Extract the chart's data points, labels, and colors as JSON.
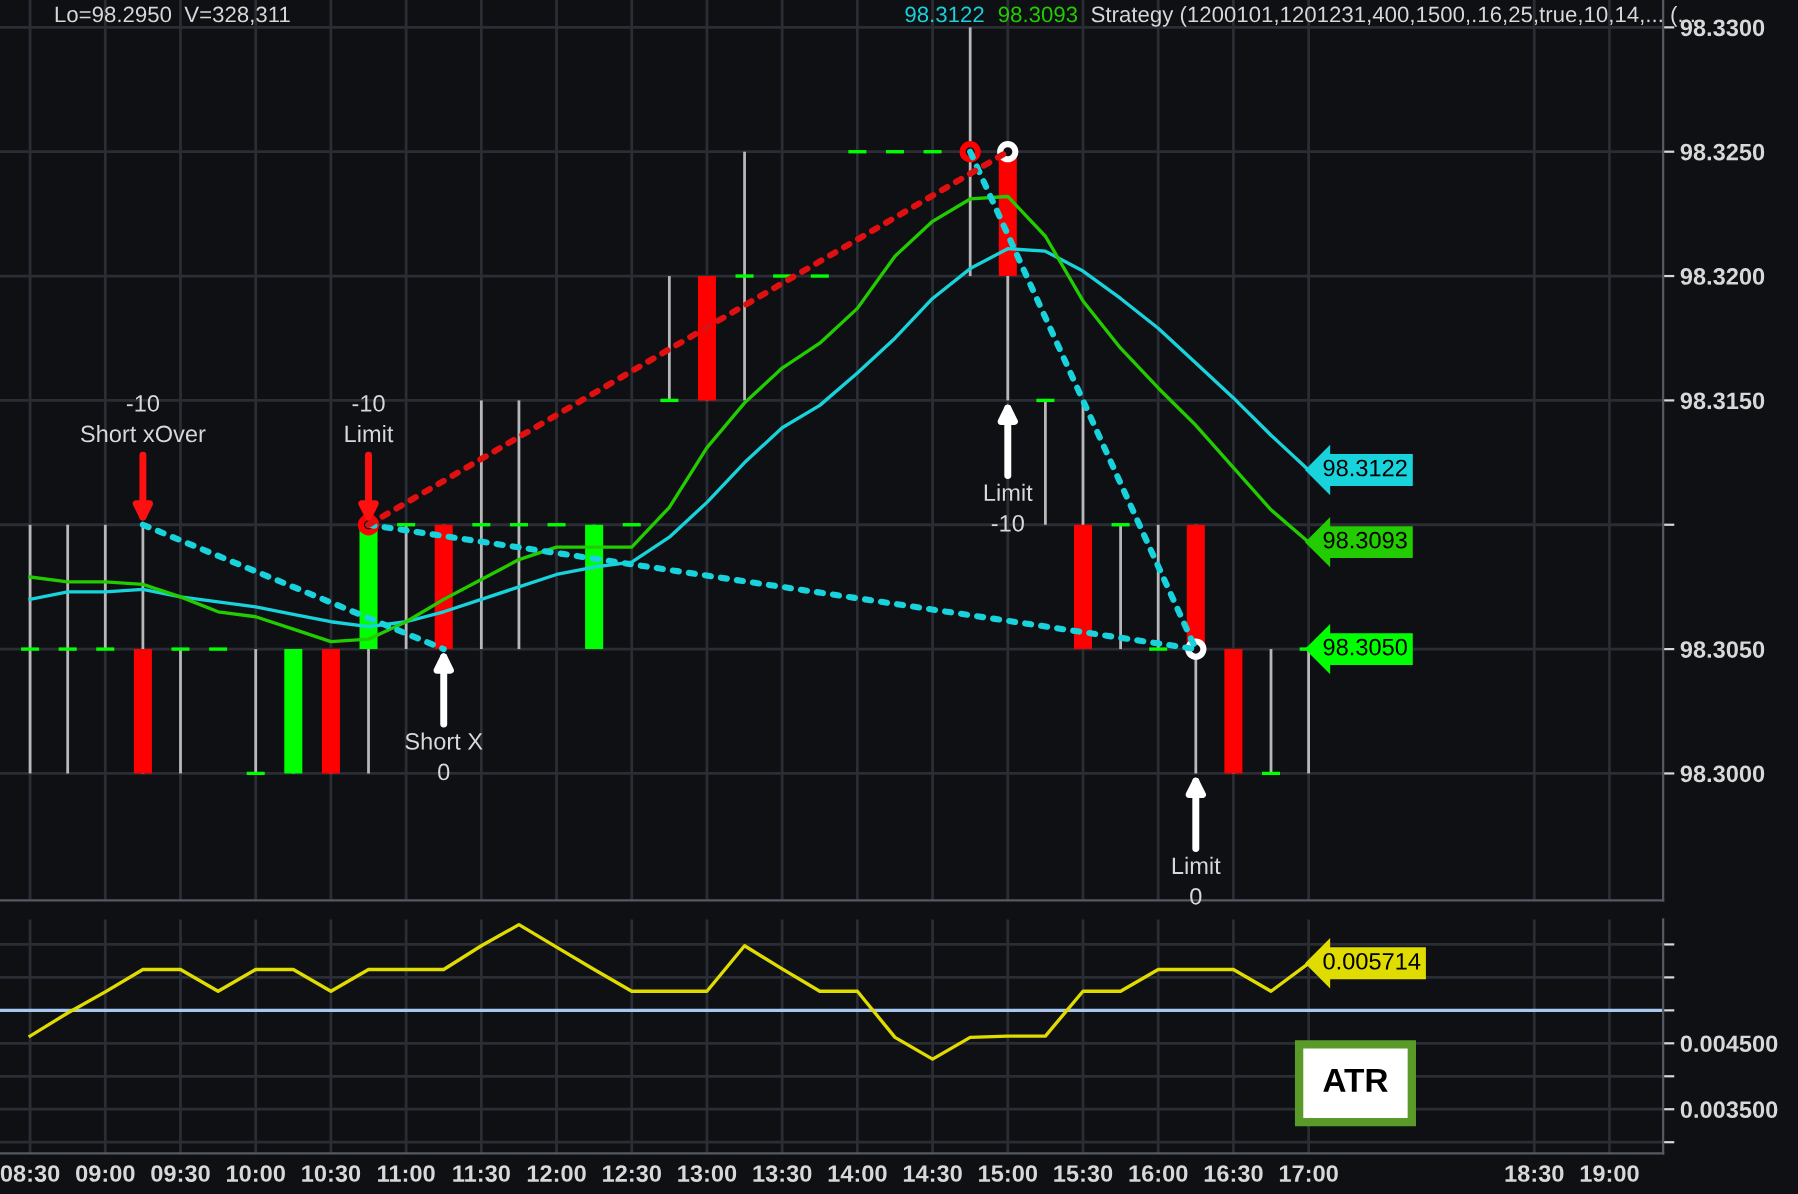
{
  "chart_data": [
    {
      "type": "candlestick",
      "x": [
        8.5,
        8.75,
        9.0,
        9.25,
        9.5,
        9.75,
        10.0,
        10.25,
        10.5,
        10.75,
        11.0,
        11.25,
        11.5,
        11.75,
        12.0,
        12.25,
        12.5,
        12.75,
        13.0,
        13.25,
        13.5,
        13.75,
        14.0,
        14.25,
        14.5,
        14.75,
        15.0,
        15.25,
        15.5,
        15.75,
        16.0,
        16.25,
        16.5,
        16.75,
        17.0
      ],
      "ohlc": [
        [
          98.305,
          98.31,
          98.3,
          98.305
        ],
        [
          98.305,
          98.31,
          98.3,
          98.305
        ],
        [
          98.305,
          98.31,
          98.305,
          98.305
        ],
        [
          98.305,
          98.31,
          98.3,
          98.3
        ],
        [
          98.305,
          98.305,
          98.3,
          98.305
        ],
        [
          98.305,
          98.305,
          98.305,
          98.305
        ],
        [
          98.3,
          98.305,
          98.3,
          98.3
        ],
        [
          98.3,
          98.305,
          98.3,
          98.305
        ],
        [
          98.305,
          98.305,
          98.3,
          98.3
        ],
        [
          98.305,
          98.31,
          98.3,
          98.31
        ],
        [
          98.31,
          98.31,
          98.305,
          98.31
        ],
        [
          98.31,
          98.31,
          98.305,
          98.305
        ],
        [
          98.31,
          98.315,
          98.305,
          98.31
        ],
        [
          98.31,
          98.315,
          98.305,
          98.31
        ],
        [
          98.31,
          98.31,
          98.31,
          98.31
        ],
        [
          98.305,
          98.31,
          98.305,
          98.31
        ],
        [
          98.31,
          98.31,
          98.31,
          98.31
        ],
        [
          98.315,
          98.32,
          98.315,
          98.315
        ],
        [
          98.32,
          98.32,
          98.315,
          98.315
        ],
        [
          98.32,
          98.325,
          98.315,
          98.32
        ],
        [
          98.32,
          98.32,
          98.32,
          98.32
        ],
        [
          98.32,
          98.32,
          98.32,
          98.32
        ],
        [
          98.325,
          98.325,
          98.325,
          98.325
        ],
        [
          98.325,
          98.325,
          98.325,
          98.325
        ],
        [
          98.325,
          98.325,
          98.325,
          98.325
        ],
        [
          98.325,
          98.33,
          98.32,
          98.325
        ],
        [
          98.325,
          98.325,
          98.315,
          98.32
        ],
        [
          98.315,
          98.315,
          98.31,
          98.315
        ],
        [
          98.31,
          98.315,
          98.305,
          98.305
        ],
        [
          98.31,
          98.31,
          98.305,
          98.31
        ],
        [
          98.305,
          98.31,
          98.305,
          98.305
        ],
        [
          98.31,
          98.31,
          98.3,
          98.305
        ],
        [
          98.305,
          98.305,
          98.3,
          98.3
        ],
        [
          98.3,
          98.305,
          98.3,
          98.3
        ],
        [
          98.305,
          98.305,
          98.3,
          98.305
        ]
      ],
      "colors": [
        "#00ff00",
        "#00ff00",
        "#00ff00",
        "#ff0000",
        "#00ff00",
        "#00ff00",
        "#00ff00",
        "#00ff00",
        "#ff0000",
        "#00ff00",
        "#00ff00",
        "#ff0000",
        "#00ff00",
        "#00ff00",
        "#00ff00",
        "#00ff00",
        "#00ff00",
        "#00ff00",
        "#ff0000",
        "#00ff00",
        "#00ff00",
        "#00ff00",
        "#00ff00",
        "#00ff00",
        "#00ff00",
        "#00ff00",
        "#ff0000",
        "#00ff00",
        "#ff0000",
        "#00ff00",
        "#00ff00",
        "#ff0000",
        "#ff0000",
        "#00ff00",
        "#00ff00"
      ],
      "value_labels": [
        null,
        null,
        null,
        null,
        null,
        null,
        null,
        null,
        null,
        null,
        null,
        null,
        null,
        null,
        null,
        null,
        null,
        null,
        null,
        null,
        null,
        null,
        null,
        null,
        null,
        null,
        null,
        null,
        null,
        null,
        null,
        null,
        null,
        null,
        "98.3050"
      ],
      "series": [
        {
          "name": "98.3122",
          "type": "line",
          "color": "#19d3dc",
          "values": [
            98.307,
            98.3073,
            98.3073,
            98.3074,
            98.3071,
            98.3069,
            98.3067,
            98.3064,
            98.3061,
            98.3059,
            98.3061,
            98.3065,
            98.307,
            98.3075,
            98.308,
            98.3083,
            98.3085,
            98.3095,
            98.3109,
            98.3125,
            98.3139,
            98.3148,
            98.3161,
            98.3175,
            98.3191,
            98.3203,
            98.3211,
            98.321,
            98.3202,
            98.3191,
            98.3179,
            98.3165,
            98.3151,
            98.3136,
            98.3122
          ],
          "value_labels": [
            null,
            null,
            null,
            null,
            null,
            null,
            null,
            null,
            null,
            null,
            null,
            null,
            null,
            null,
            null,
            null,
            null,
            null,
            null,
            null,
            null,
            null,
            null,
            null,
            null,
            null,
            null,
            null,
            null,
            null,
            null,
            null,
            null,
            null,
            "98.3122"
          ]
        },
        {
          "name": "98.3093",
          "type": "line",
          "color": "#22cc00",
          "values": [
            98.3079,
            98.3077,
            98.3077,
            98.3076,
            98.3071,
            98.3065,
            98.3063,
            98.3058,
            98.3053,
            98.3054,
            98.3061,
            98.307,
            98.3078,
            98.3086,
            98.3091,
            98.3091,
            98.3091,
            98.3107,
            98.3131,
            98.3149,
            98.3163,
            98.3173,
            98.3187,
            98.3208,
            98.3222,
            98.3231,
            98.3232,
            98.3216,
            98.319,
            98.3171,
            98.3155,
            98.314,
            98.3123,
            98.3106,
            98.3093
          ],
          "value_labels": [
            null,
            null,
            null,
            null,
            null,
            null,
            null,
            null,
            null,
            null,
            null,
            null,
            null,
            null,
            null,
            null,
            null,
            null,
            null,
            null,
            null,
            null,
            null,
            null,
            null,
            null,
            null,
            null,
            null,
            null,
            null,
            null,
            null,
            null,
            "98.3093"
          ]
        },
        {
          "type": "line",
          "color": "#19d3dc",
          "line_style": "dotted",
          "x": [
            9.25,
            11.25
          ],
          "values": [
            98.31,
            98.305
          ]
        },
        {
          "type": "line",
          "color": "#19d3dc",
          "line_style": "dotted",
          "x": [
            10.75,
            16.25
          ],
          "values": [
            98.31,
            98.305
          ]
        },
        {
          "type": "line",
          "color": "#19d3dc",
          "line_style": "dotted",
          "x": [
            14.75,
            16.25
          ],
          "values": [
            98.325,
            98.305
          ]
        },
        {
          "type": "line",
          "color": "#e01010",
          "line_style": "dotted",
          "x": [
            10.75,
            15.0
          ],
          "values": [
            98.31,
            98.325
          ]
        },
        {
          "type": "scatter",
          "color": "#ff0000",
          "marker": "circle",
          "x": [
            10.75,
            14.75
          ],
          "values": [
            98.31,
            98.325
          ]
        },
        {
          "type": "scatter",
          "color": "#ffffff",
          "marker": "circle",
          "x": [
            15.0,
            16.25
          ],
          "values": [
            98.325,
            98.305
          ]
        }
      ],
      "annotations": [
        "Lo=98.2950  V=328,311",
        "Strategy (1200101,1201231,400,1500,.16,25,true,10,14,... (...",
        {
          "text": "-10\nShort xOver",
          "x": 9.25,
          "y": 98.31
        },
        {
          "text": "-10\nLimit",
          "x": 10.75,
          "y": 98.31
        },
        {
          "text": "Short X\n0",
          "x": 11.25,
          "y": 98.305
        },
        {
          "text": "Limit\n-10",
          "x": 15.0,
          "y": 98.315
        },
        {
          "text": "Limit\n0",
          "x": 16.25,
          "y": 98.3
        }
      ],
      "legend": "top",
      "xlim": [
        8.3,
        19.357
      ],
      "xticks": [
        {
          "value": 8.5,
          "label": null
        },
        {
          "value": 9.0,
          "label": null
        },
        {
          "value": 9.5,
          "label": null
        },
        {
          "value": 10.0,
          "label": null
        },
        {
          "value": 10.5,
          "label": null
        },
        {
          "value": 11.0,
          "label": null
        },
        {
          "value": 11.5,
          "label": null
        },
        {
          "value": 12.0,
          "label": null
        },
        {
          "value": 12.5,
          "label": null
        },
        {
          "value": 13.0,
          "label": null
        },
        {
          "value": 13.5,
          "label": null
        },
        {
          "value": 14.0,
          "label": null
        },
        {
          "value": 14.5,
          "label": null
        },
        {
          "value": 15.0,
          "label": null
        },
        {
          "value": 15.5,
          "label": null
        },
        {
          "value": 16.0,
          "label": null
        },
        {
          "value": 16.5,
          "label": null
        },
        {
          "value": 17.0,
          "label": null
        },
        {
          "value": 18.5,
          "label": null
        },
        {
          "value": 19.0,
          "label": null
        }
      ],
      "ylim": [
        98.2949,
        98.3311
      ],
      "yticks": [
        {
          "value": 98.3,
          "label": "98.3000"
        },
        {
          "value": 98.305,
          "label": "98.3050"
        },
        {
          "value": 98.31,
          "label": null
        },
        {
          "value": 98.315,
          "label": "98.3150"
        },
        {
          "value": 98.32,
          "label": "98.3200"
        },
        {
          "value": 98.325,
          "label": "98.3250"
        },
        {
          "value": 98.33,
          "label": "98.3300"
        }
      ],
      "grid": true,
      "tick_labels": "y"
    },
    {
      "type": "line",
      "x": [
        8.5,
        8.75,
        9.0,
        9.25,
        9.5,
        9.75,
        10.0,
        10.25,
        10.5,
        10.75,
        11.0,
        11.25,
        11.5,
        11.75,
        12.0,
        12.25,
        12.5,
        12.75,
        13.0,
        13.25,
        13.5,
        13.75,
        14.0,
        14.25,
        14.5,
        14.75,
        15.0,
        15.25,
        15.5,
        15.75,
        16.0,
        16.25,
        16.5,
        16.75,
        17.0
      ],
      "series": [
        {
          "color": "#e0dc00",
          "values": [
            0.00461,
            0.00496,
            0.00528,
            0.00562,
            0.00562,
            0.00529,
            0.00562,
            0.00562,
            0.00529,
            0.00562,
            0.00562,
            0.00562,
            0.00598,
            0.0063,
            0.00596,
            0.00562,
            0.00529,
            0.00529,
            0.00529,
            0.00598,
            0.00563,
            0.00529,
            0.00529,
            0.00459,
            0.00426,
            0.00459,
            0.00461,
            0.00461,
            0.00529,
            0.00529,
            0.00562,
            0.00562,
            0.00562,
            0.00529,
            0.005714
          ],
          "value_labels": [
            null,
            null,
            null,
            null,
            null,
            null,
            null,
            null,
            null,
            null,
            null,
            null,
            null,
            null,
            null,
            null,
            null,
            null,
            null,
            null,
            null,
            null,
            null,
            null,
            null,
            null,
            null,
            null,
            null,
            null,
            null,
            null,
            null,
            null,
            "0.005714"
          ]
        }
      ],
      "ref_lines": [
        {
          "axis": "y",
          "value": 0.005,
          "color": "#a8c8f0"
        }
      ],
      "annotations": [
        "ATR"
      ],
      "xlim": [
        8.3,
        19.357
      ],
      "xticks": [
        {
          "value": 8.5,
          "label": "08:30"
        },
        {
          "value": 9.0,
          "label": "09:00"
        },
        {
          "value": 9.5,
          "label": "09:30"
        },
        {
          "value": 10.0,
          "label": "10:00"
        },
        {
          "value": 10.5,
          "label": "10:30"
        },
        {
          "value": 11.0,
          "label": "11:00"
        },
        {
          "value": 11.5,
          "label": "11:30"
        },
        {
          "value": 12.0,
          "label": "12:00"
        },
        {
          "value": 12.5,
          "label": "12:30"
        },
        {
          "value": 13.0,
          "label": "13:00"
        },
        {
          "value": 13.5,
          "label": "13:30"
        },
        {
          "value": 14.0,
          "label": "14:00"
        },
        {
          "value": 14.5,
          "label": "14:30"
        },
        {
          "value": 15.0,
          "label": "15:00"
        },
        {
          "value": 15.5,
          "label": "15:30"
        },
        {
          "value": 16.0,
          "label": "16:00"
        },
        {
          "value": 16.5,
          "label": "16:30"
        },
        {
          "value": 17.0,
          "label": "17:00"
        },
        {
          "value": 18.5,
          "label": "18:30"
        },
        {
          "value": 19.0,
          "label": "19:00"
        }
      ],
      "ylim": [
        0.00283,
        0.00638
      ],
      "yticks": [
        {
          "value": 0.003,
          "label": null
        },
        {
          "value": 0.0035,
          "label": "0.003500"
        },
        {
          "value": 0.004,
          "label": null
        },
        {
          "value": 0.0045,
          "label": "0.004500"
        },
        {
          "value": 0.005,
          "label": null
        },
        {
          "value": 0.0055,
          "label": null
        },
        {
          "value": 0.006,
          "label": null
        }
      ],
      "grid": true
    }
  ]
}
